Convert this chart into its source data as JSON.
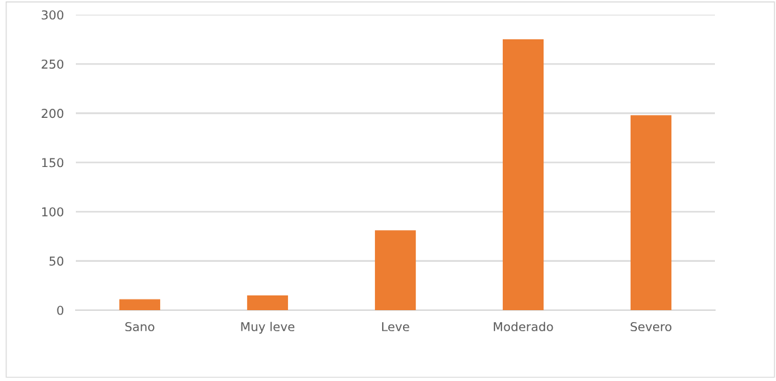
{
  "chart_data": {
    "type": "bar",
    "categories": [
      "Sano",
      "Muy leve",
      "Leve",
      "Moderado",
      "Severo"
    ],
    "values": [
      11,
      15,
      81,
      275,
      198
    ],
    "color": "#ed7d31",
    "ylim": [
      0,
      300
    ],
    "yticks": [
      0,
      50,
      100,
      150,
      200,
      250,
      300
    ],
    "grid": "y"
  }
}
